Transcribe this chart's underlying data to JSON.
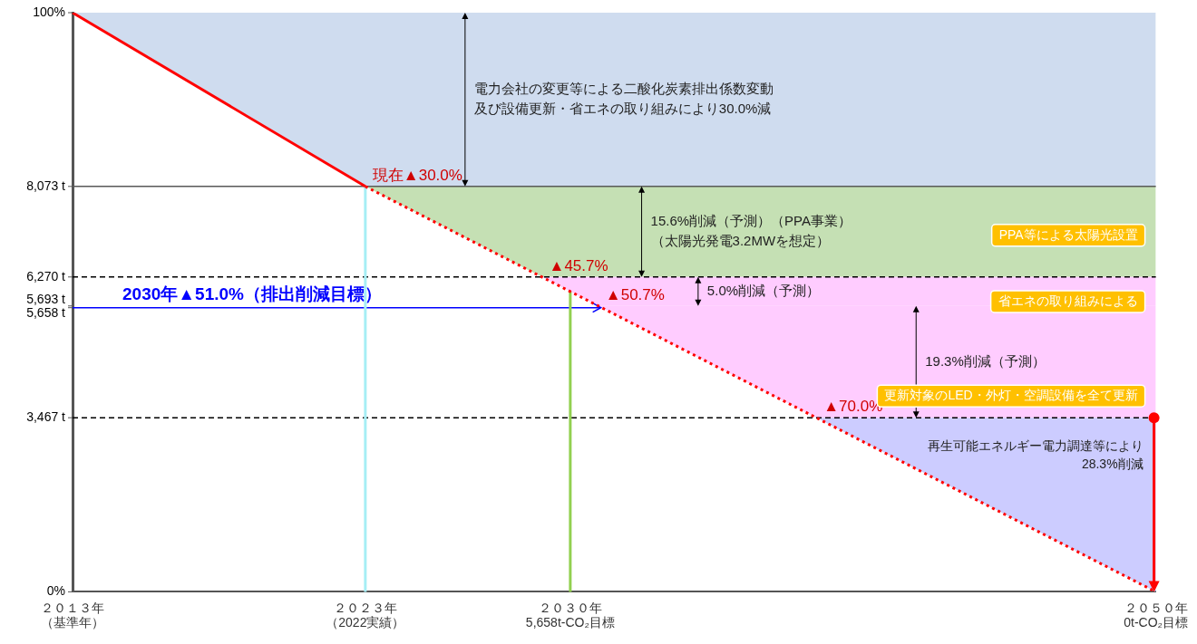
{
  "chart_data": {
    "type": "line",
    "marker": "none",
    "categories": [
      "２０１３年（基準年）",
      null,
      null,
      null,
      null,
      null,
      null,
      null,
      null,
      null,
      "２０２３年（2022実績）",
      null,
      null,
      null,
      null,
      null,
      null,
      "２０３０年5,658t-CO₂目標",
      null,
      null,
      null,
      null,
      null,
      null,
      null,
      null,
      null,
      null,
      null,
      null,
      null,
      null,
      null,
      null,
      null,
      null,
      null,
      "２０５０年0t-CO₂目標"
    ],
    "ylim": [
      0,
      11533
    ],
    "yticks": [
      {
        "value": 8073,
        "label": "8,073 t"
      },
      {
        "value": 6270,
        "label": "6,270 t"
      },
      {
        "value": 5693,
        "label": "5,693 t"
      },
      {
        "value": 5658,
        "label": "5,658 t"
      },
      {
        "value": 3467,
        "label": "3,467 t"
      }
    ],
    "y2lim": [
      0,
      100
    ],
    "y2ticks": [
      {
        "value": 100,
        "label": "100%"
      },
      {
        "value": 0,
        "label": "0%"
      }
    ],
    "series": [
      {
        "color": "#ff0000",
        "line_style": "solid",
        "values": [
          11533,
          null,
          null,
          null,
          null,
          null,
          null,
          null,
          null,
          null,
          8073,
          null,
          null,
          null,
          null,
          null,
          null,
          null,
          null,
          null,
          null,
          null,
          null,
          null,
          null,
          null,
          null,
          null,
          null,
          null,
          null,
          null,
          null,
          null,
          null,
          null,
          null,
          null
        ]
      },
      {
        "color": "#ff0000",
        "line_style": "dotted",
        "values": [
          null,
          null,
          null,
          null,
          null,
          null,
          null,
          null,
          null,
          null,
          8073,
          null,
          null,
          null,
          null,
          null,
          null,
          null,
          null,
          null,
          null,
          null,
          null,
          null,
          null,
          null,
          null,
          null,
          null,
          null,
          null,
          null,
          null,
          null,
          null,
          null,
          null,
          0
        ]
      }
    ],
    "bands": [
      {
        "axis": "y",
        "from": 8073,
        "to": 11533,
        "color": "#cfdcef",
        "label": "電力会社の変更等による二酸化炭素排出係数変動及び設備更新・省エネの取り組みにより30.0%減"
      },
      {
        "axis": "y",
        "from": 6270,
        "to": 8073,
        "color": "#c5e0b4",
        "label": "15.6%削減（予測）（PPA事業）（太陽光発電3.2MWを想定）"
      },
      {
        "axis": "y",
        "from": 5693,
        "to": 6270,
        "color": "#ffccff",
        "label": "5.0%削減（予測）"
      },
      {
        "axis": "y",
        "from": 3467,
        "to": 5693,
        "color": "#ffccff",
        "label": "19.3%削減（予測）"
      },
      {
        "axis": "y",
        "from": 0,
        "to": 3467,
        "color": "#ccccff",
        "label": "再生可能エネルギー電力調達等により28.3%削減"
      }
    ],
    "ref_lines": [
      {
        "axis": "y",
        "value": 8073,
        "color": "#595959",
        "line_style": "solid"
      },
      {
        "axis": "y",
        "value": 6270,
        "color": "#000000",
        "line_style": "dashed"
      },
      {
        "axis": "y",
        "value": 3467,
        "color": "#000000",
        "line_style": "dashed"
      },
      {
        "axis": "y",
        "value": 5658,
        "color": "#0000ff",
        "line_style": "solid",
        "label": "2030年▲51.0%（排出削減目標）"
      },
      {
        "axis": "x",
        "value": "２０２３年（2022実績）",
        "color": "#a6eef5",
        "line_style": "solid"
      },
      {
        "axis": "x",
        "value": "２０３０年5,658t-CO₂目標",
        "color": "#92d050",
        "line_style": "solid"
      }
    ],
    "annotations": [
      {
        "text": "現在▲30.0%",
        "y": 8073
      },
      {
        "text": "▲45.7%",
        "y": 6270
      },
      {
        "text": "▲50.7%",
        "y": 5693
      },
      {
        "text": "▲70.0%",
        "y": 3467
      },
      {
        "text": "PPA等による太陽光設置",
        "x": "２０５０年0t-CO₂目標",
        "y": 7100
      },
      {
        "text": "省エネの取り組みによる",
        "x": "２０５０年0t-CO₂目標",
        "y": 5780
      },
      {
        "text": "更新対象のLED・外灯・空調設備を全て更新",
        "x": "２０５０年0t-CO₂目標",
        "y": 3900
      }
    ]
  }
}
